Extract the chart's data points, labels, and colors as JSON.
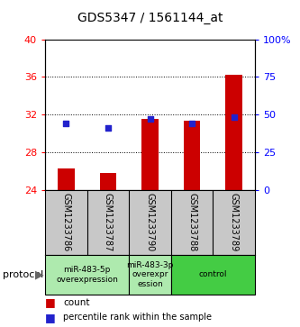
{
  "title": "GDS5347 / 1561144_at",
  "samples": [
    "GSM1233786",
    "GSM1233787",
    "GSM1233790",
    "GSM1233788",
    "GSM1233789"
  ],
  "count_values": [
    26.3,
    25.8,
    31.5,
    31.3,
    36.2
  ],
  "percentile_values": [
    44,
    41,
    47,
    44,
    48
  ],
  "ylim_left": [
    24,
    40
  ],
  "ylim_right": [
    0,
    100
  ],
  "yticks_left": [
    24,
    28,
    32,
    36,
    40
  ],
  "yticks_right": [
    0,
    25,
    50,
    75,
    100
  ],
  "ytick_labels_right": [
    "0",
    "25",
    "50",
    "75",
    "100%"
  ],
  "bar_color": "#cc0000",
  "dot_color": "#2222cc",
  "bar_width": 0.4,
  "dot_size": 18,
  "sample_box_color": "#c8c8c8",
  "group_configs": [
    {
      "indices": [
        0,
        1
      ],
      "label": "miR-483-5p\noverexpression",
      "color": "#aeeaae"
    },
    {
      "indices": [
        2
      ],
      "label": "miR-483-3p\noverexpr\nession",
      "color": "#aeeaae"
    },
    {
      "indices": [
        3,
        4
      ],
      "label": "control",
      "color": "#44cc44"
    }
  ]
}
